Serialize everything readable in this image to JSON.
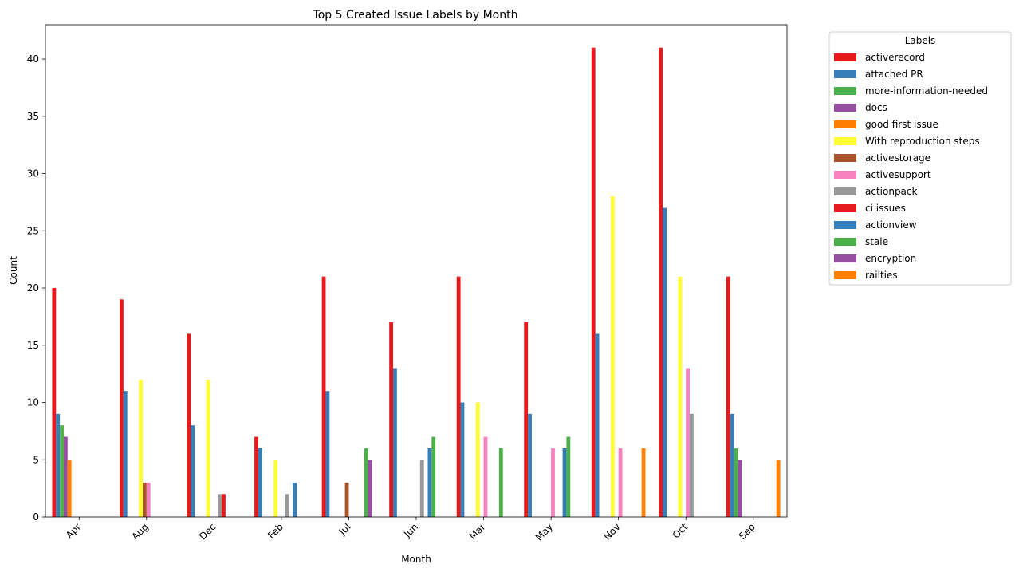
{
  "chart_data": {
    "type": "bar",
    "title": "Top 5 Created Issue Labels by Month",
    "xlabel": "Month",
    "ylabel": "Count",
    "ylim": [
      0,
      43
    ],
    "yticks": [
      0,
      5,
      10,
      15,
      20,
      25,
      30,
      35,
      40
    ],
    "grid": false,
    "legend": {
      "title": "Labels",
      "placement": "outside-top-right"
    },
    "categories": [
      "Apr",
      "Aug",
      "Dec",
      "Feb",
      "Jul",
      "Jun",
      "Mar",
      "May",
      "Nov",
      "Oct",
      "Sep"
    ],
    "series": [
      {
        "name": "activerecord",
        "color": "#e41a1c",
        "values": [
          20,
          19,
          16,
          7,
          21,
          17,
          21,
          17,
          41,
          41,
          21
        ]
      },
      {
        "name": "attached PR",
        "color": "#377eb8",
        "values": [
          9,
          11,
          8,
          6,
          11,
          13,
          10,
          9,
          16,
          27,
          9
        ]
      },
      {
        "name": "more-information-needed",
        "color": "#4daf4a",
        "values": [
          8,
          null,
          null,
          null,
          null,
          null,
          null,
          null,
          null,
          null,
          6
        ]
      },
      {
        "name": "docs",
        "color": "#984ea3",
        "values": [
          7,
          null,
          null,
          null,
          null,
          null,
          null,
          null,
          null,
          null,
          5
        ]
      },
      {
        "name": "good first issue",
        "color": "#ff7f00",
        "values": [
          5,
          null,
          null,
          null,
          null,
          null,
          null,
          null,
          null,
          null,
          null
        ]
      },
      {
        "name": "With reproduction steps",
        "color": "#ffff33",
        "values": [
          null,
          12,
          12,
          5,
          null,
          null,
          10,
          null,
          28,
          21,
          null
        ]
      },
      {
        "name": "activestorage",
        "color": "#a65628",
        "values": [
          null,
          3,
          null,
          null,
          3,
          null,
          null,
          null,
          null,
          null,
          null
        ]
      },
      {
        "name": "activesupport",
        "color": "#f781bf",
        "values": [
          null,
          3,
          null,
          null,
          null,
          null,
          7,
          6,
          6,
          13,
          null
        ]
      },
      {
        "name": "actionpack",
        "color": "#999999",
        "values": [
          null,
          null,
          2,
          2,
          null,
          5,
          null,
          null,
          null,
          9,
          null
        ]
      },
      {
        "name": "ci issues",
        "color": "#e41a1c",
        "values": [
          null,
          null,
          2,
          null,
          null,
          null,
          null,
          null,
          null,
          null,
          null
        ]
      },
      {
        "name": "actionview",
        "color": "#377eb8",
        "values": [
          null,
          null,
          null,
          3,
          null,
          6,
          null,
          6,
          null,
          null,
          null
        ]
      },
      {
        "name": "stale",
        "color": "#4daf4a",
        "values": [
          null,
          null,
          null,
          null,
          6,
          7,
          6,
          7,
          null,
          null,
          null
        ]
      },
      {
        "name": "encryption",
        "color": "#984ea3",
        "values": [
          null,
          null,
          null,
          null,
          5,
          null,
          null,
          null,
          null,
          null,
          null
        ]
      },
      {
        "name": "railties",
        "color": "#ff7f00",
        "values": [
          null,
          null,
          null,
          null,
          null,
          null,
          null,
          null,
          6,
          null,
          5
        ]
      }
    ]
  }
}
